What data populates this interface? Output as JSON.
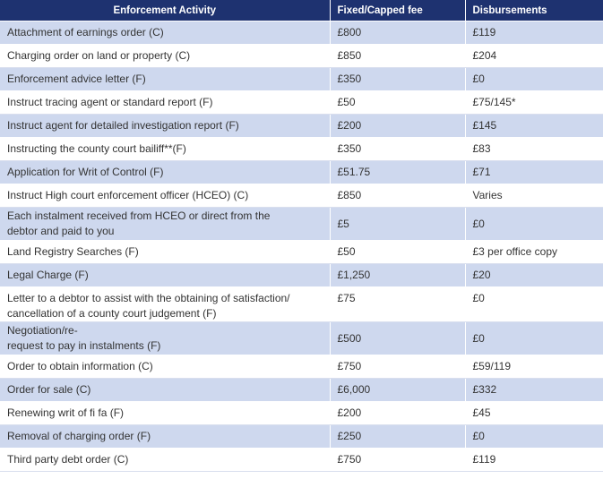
{
  "table": {
    "headers": {
      "activity": "Enforcement Activity",
      "fee": "Fixed/Capped fee",
      "disbursements": "Disbursements"
    },
    "rows": [
      {
        "activity": "Attachment of earnings order (C)",
        "fee": "£800",
        "disbursements": "£119"
      },
      {
        "activity": "Charging order on land or property (C)",
        "fee": "£850",
        "disbursements": "£204"
      },
      {
        "activity": "Enforcement advice letter (F)",
        "fee": "£350",
        "disbursements": "£0"
      },
      {
        "activity": "Instruct tracing agent or standard report (F)",
        "fee": "£50",
        "disbursements": "£75/145*"
      },
      {
        "activity": "Instruct agent for detailed investigation report (F)",
        "fee": "£200",
        "disbursements": "£145"
      },
      {
        "activity": "Instructing the county court bailiff**(F)",
        "fee": "£350",
        "disbursements": "£83"
      },
      {
        "activity": "Application for Writ of Control (F)",
        "fee": "£51.75",
        "disbursements": "£71"
      },
      {
        "activity": "Instruct High court enforcement officer (HCEO) (C)",
        "fee": "£850",
        "disbursements": "Varies"
      },
      {
        "activity_line1": "Each instalment received from HCEO or direct from the",
        "activity_line2": "debtor and paid to you",
        "fee": "£5",
        "disbursements": "£0"
      },
      {
        "activity": "Land Registry Searches (F)",
        "fee": "£50",
        "disbursements": "£3 per office copy"
      },
      {
        "activity": "Legal Charge (F)",
        "fee": "£1,250",
        "disbursements": "£20"
      },
      {
        "activity_line1": "Letter to a debtor to assist with the obtaining of satisfaction/",
        "activity_line2": "cancellation of a county court judgement (F)",
        "fee": "£75",
        "disbursements": "£0"
      },
      {
        "activity_line1": "Negotiation/re-",
        "activity_line2": "request to pay in instalments (F)",
        "fee": "£500",
        "disbursements": "£0"
      },
      {
        "activity": "Order to obtain information (C)",
        "fee": "£750",
        "disbursements": "£59/119"
      },
      {
        "activity": "Order for sale (C)",
        "fee": "£6,000",
        "disbursements": "£332"
      },
      {
        "activity": "Renewing writ of fi fa (F)",
        "fee": "£200",
        "disbursements": "£45"
      },
      {
        "activity": "Removal of charging order (F)",
        "fee": "£250",
        "disbursements": "£0"
      },
      {
        "activity": "Third party debt order (C)",
        "fee": "£750",
        "disbursements": "£119"
      }
    ]
  },
  "colors": {
    "header_bg": "#1e3270",
    "header_text": "#ffffff",
    "row_shaded": "#ced8ee",
    "row_plain": "#ffffff",
    "text": "#333333"
  }
}
